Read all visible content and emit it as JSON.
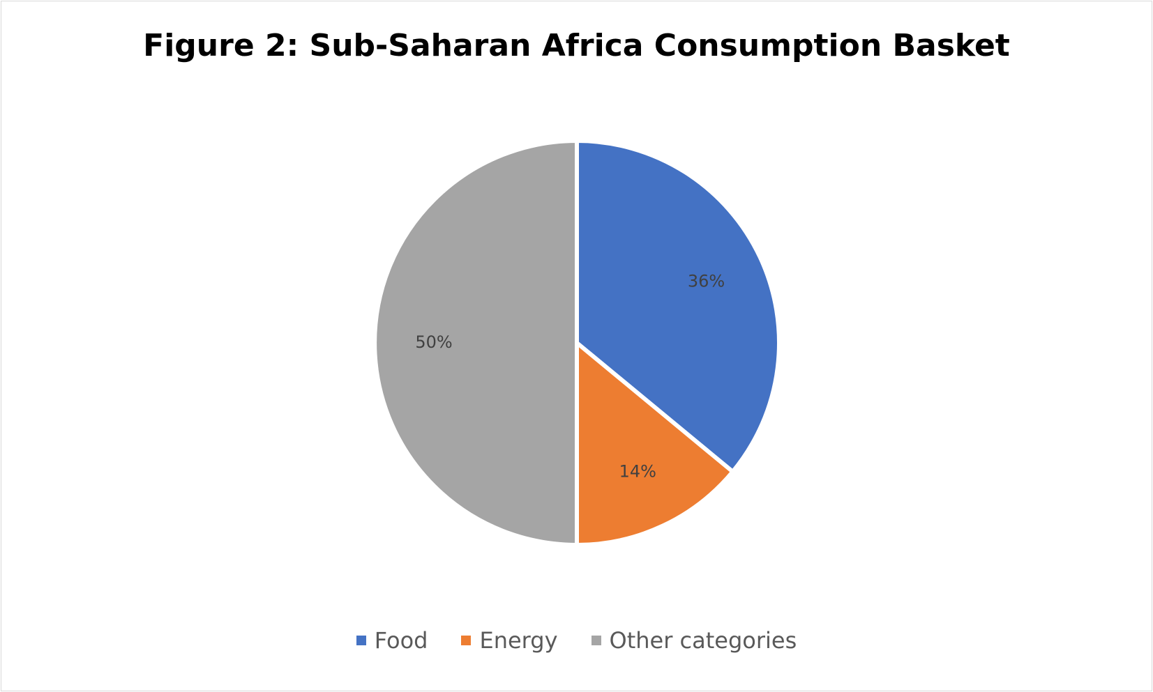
{
  "chart_data": {
    "type": "pie",
    "title": "Figure 2: Sub-Saharan Africa Consumption Basket",
    "categories": [
      "Food",
      "Energy",
      "Other categories"
    ],
    "values": [
      36,
      14,
      50
    ],
    "labels": [
      "36%",
      "14%",
      "50%"
    ],
    "colors": [
      "#4472C4",
      "#ED7D31",
      "#A5A5A5"
    ],
    "legend_position": "bottom"
  }
}
